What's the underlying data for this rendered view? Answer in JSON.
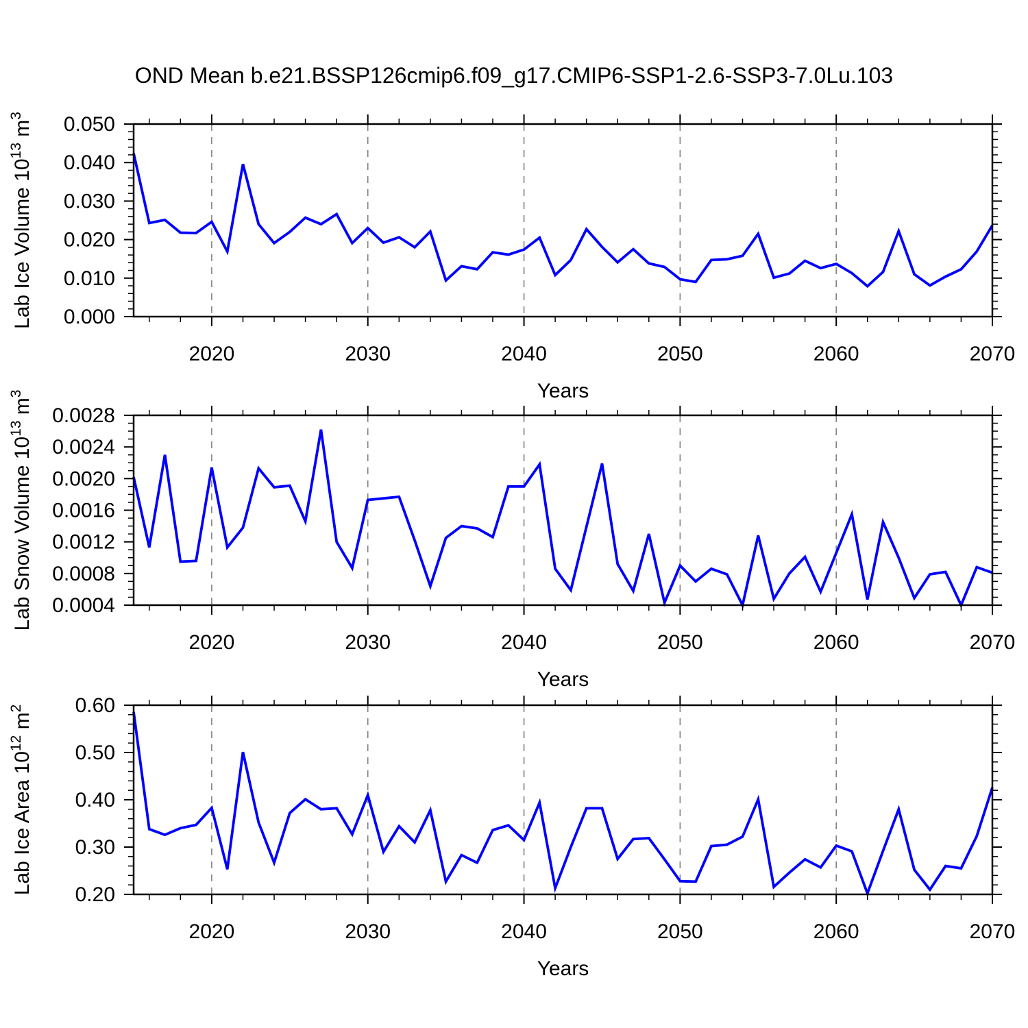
{
  "title": "OND Mean b.e21.BSSP126cmip6.f09_g17.CMIP6-SSP1-2.6-SSP3-7.0Lu.103",
  "colors": {
    "line": "#0000ff",
    "frame": "#000000",
    "gridline": "#808080",
    "text": "#000000",
    "background": "#ffffff"
  },
  "axes": {
    "xlabel": "Years",
    "xlim": [
      2015,
      2070
    ],
    "x_tick_labels": [
      "2020",
      "2030",
      "2040",
      "2050",
      "2060",
      "2070"
    ],
    "x_tick_values": [
      2020,
      2030,
      2040,
      2050,
      2060,
      2070
    ],
    "x_minor_step": 2,
    "grid_years": [
      2020,
      2030,
      2040,
      2050,
      2060
    ],
    "grid_style": "dashed-vertical"
  },
  "chart_data": [
    {
      "type": "line",
      "name": "Lab Ice Volume",
      "ylabel": "Lab Ice Volume 10^13 m^3",
      "ylim": [
        0.0,
        0.05
      ],
      "y_tick_labels": [
        "0.000",
        "0.010",
        "0.020",
        "0.030",
        "0.040",
        "0.050"
      ],
      "y_tick_values": [
        0.0,
        0.01,
        0.02,
        0.03,
        0.04,
        0.05
      ],
      "y_minor_step": 0.002,
      "x": [
        2015,
        2016,
        2017,
        2018,
        2019,
        2020,
        2021,
        2022,
        2023,
        2024,
        2025,
        2026,
        2027,
        2028,
        2029,
        2030,
        2031,
        2032,
        2033,
        2034,
        2035,
        2036,
        2037,
        2038,
        2039,
        2040,
        2041,
        2042,
        2043,
        2044,
        2045,
        2046,
        2047,
        2048,
        2049,
        2050,
        2051,
        2052,
        2053,
        2054,
        2055,
        2056,
        2057,
        2058,
        2059,
        2060,
        2061,
        2062,
        2063,
        2064,
        2065,
        2066,
        2067,
        2068,
        2069,
        2070
      ],
      "values": [
        0.0424,
        0.0243,
        0.0251,
        0.0218,
        0.0217,
        0.0246,
        0.0169,
        0.0396,
        0.024,
        0.0191,
        0.022,
        0.0257,
        0.024,
        0.0266,
        0.0191,
        0.023,
        0.0192,
        0.0206,
        0.018,
        0.0221,
        0.0094,
        0.0131,
        0.0123,
        0.0167,
        0.0161,
        0.0174,
        0.0205,
        0.0108,
        0.0147,
        0.0227,
        0.0181,
        0.0141,
        0.0175,
        0.0138,
        0.0129,
        0.0097,
        0.009,
        0.0147,
        0.0149,
        0.0158,
        0.0215,
        0.0101,
        0.0112,
        0.0145,
        0.0126,
        0.0137,
        0.0113,
        0.0079,
        0.0116,
        0.0222,
        0.011,
        0.0081,
        0.0104,
        0.0123,
        0.0169,
        0.0237
      ]
    },
    {
      "type": "line",
      "name": "Lab Snow Volume",
      "ylabel": "Lab Snow Volume 10^13 m^3",
      "ylim": [
        0.0004,
        0.0028
      ],
      "y_tick_labels": [
        "0.0004",
        "0.0008",
        "0.0012",
        "0.0016",
        "0.0020",
        "0.0024",
        "0.0028"
      ],
      "y_tick_values": [
        0.0004,
        0.0008,
        0.0012,
        0.0016,
        0.002,
        0.0024,
        0.0028
      ],
      "y_minor_step": 0.0001,
      "x": [
        2015,
        2016,
        2017,
        2018,
        2019,
        2020,
        2021,
        2022,
        2023,
        2024,
        2025,
        2026,
        2027,
        2028,
        2029,
        2030,
        2031,
        2032,
        2033,
        2034,
        2035,
        2036,
        2037,
        2038,
        2039,
        2040,
        2041,
        2042,
        2043,
        2044,
        2045,
        2046,
        2047,
        2048,
        2049,
        2050,
        2051,
        2052,
        2053,
        2054,
        2055,
        2056,
        2057,
        2058,
        2059,
        2060,
        2061,
        2062,
        2063,
        2064,
        2065,
        2066,
        2067,
        2068,
        2069,
        2070
      ],
      "values": [
        0.00202,
        0.00113,
        0.0023,
        0.00095,
        0.00096,
        0.00214,
        0.00113,
        0.00138,
        0.00213,
        0.00189,
        0.00191,
        0.00146,
        0.00262,
        0.0012,
        0.00087,
        0.00173,
        0.00175,
        0.00177,
        0.00122,
        0.00064,
        0.00125,
        0.0014,
        0.00137,
        0.00126,
        0.0019,
        0.0019,
        0.00218,
        0.00086,
        0.00059,
        0.00139,
        0.00219,
        0.00092,
        0.00058,
        0.0013,
        0.00043,
        0.0009,
        0.0007,
        0.00086,
        0.00079,
        0.0004,
        0.00128,
        0.00048,
        0.0008,
        0.00101,
        0.00057,
        0.00106,
        0.00155,
        0.00047,
        0.00145,
        0.001,
        0.00049,
        0.00079,
        0.00082,
        0.0004,
        0.00088,
        0.00081
      ]
    },
    {
      "type": "line",
      "name": "Lab Ice Area",
      "ylabel": "Lab Ice Area 10^12 m^2",
      "ylim": [
        0.2,
        0.6
      ],
      "y_tick_labels": [
        "0.20",
        "0.30",
        "0.40",
        "0.50",
        "0.60"
      ],
      "y_tick_values": [
        0.2,
        0.3,
        0.4,
        0.5,
        0.6
      ],
      "y_minor_step": 0.02,
      "x": [
        2015,
        2016,
        2017,
        2018,
        2019,
        2020,
        2021,
        2022,
        2023,
        2024,
        2025,
        2026,
        2027,
        2028,
        2029,
        2030,
        2031,
        2032,
        2033,
        2034,
        2035,
        2036,
        2037,
        2038,
        2039,
        2040,
        2041,
        2042,
        2043,
        2044,
        2045,
        2046,
        2047,
        2048,
        2049,
        2050,
        2051,
        2052,
        2053,
        2054,
        2055,
        2056,
        2057,
        2058,
        2059,
        2060,
        2061,
        2062,
        2063,
        2064,
        2065,
        2066,
        2067,
        2068,
        2069,
        2070
      ],
      "values": [
        0.586,
        0.338,
        0.326,
        0.34,
        0.347,
        0.383,
        0.253,
        0.501,
        0.352,
        0.267,
        0.372,
        0.401,
        0.38,
        0.382,
        0.327,
        0.41,
        0.29,
        0.344,
        0.31,
        0.378,
        0.227,
        0.283,
        0.267,
        0.336,
        0.346,
        0.315,
        0.394,
        0.213,
        0.3,
        0.382,
        0.382,
        0.275,
        0.317,
        0.319,
        0.274,
        0.228,
        0.227,
        0.302,
        0.305,
        0.322,
        0.401,
        0.216,
        0.246,
        0.274,
        0.257,
        0.303,
        0.291,
        0.202,
        0.292,
        0.38,
        0.252,
        0.21,
        0.26,
        0.255,
        0.323,
        0.426
      ]
    }
  ]
}
